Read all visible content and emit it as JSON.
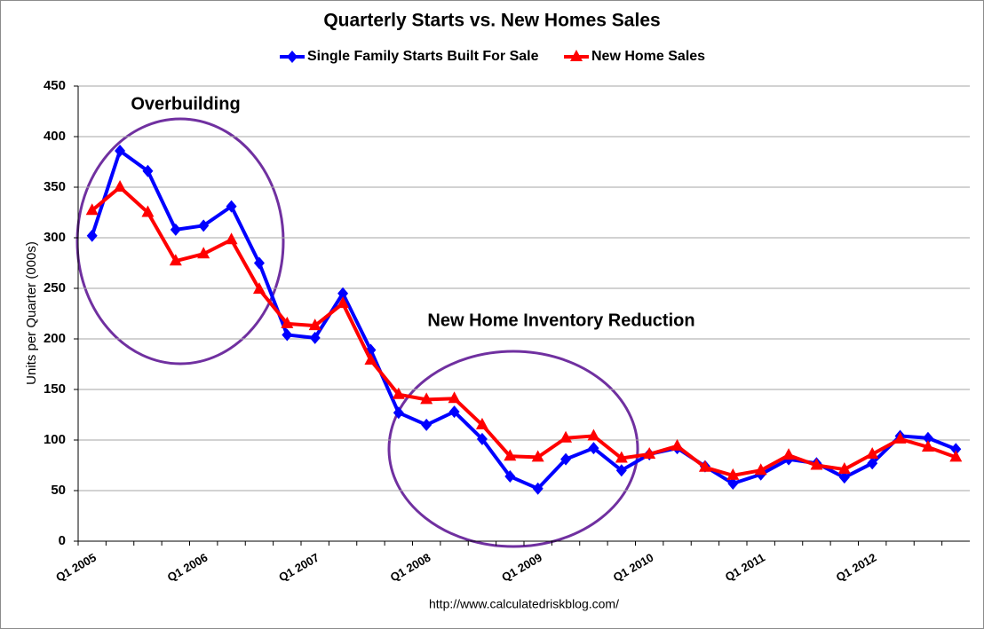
{
  "chart_data": {
    "type": "line",
    "title": "Quarterly Starts vs. New Homes Sales",
    "y_label": "Units per Quarter (000s)",
    "annotations": [
      "Overbuilding",
      "New Home Inventory Reduction"
    ],
    "source": "http://www.calculatedriskblog.com/",
    "categories": [
      "Q1 2005",
      null,
      null,
      null,
      "Q1 2006",
      null,
      null,
      null,
      "Q1 2007",
      null,
      null,
      null,
      "Q1 2008",
      null,
      null,
      null,
      "Q1 2009",
      null,
      null,
      null,
      "Q1 2010",
      null,
      null,
      null,
      "Q1 2011",
      null,
      null,
      null,
      "Q1 2012",
      null,
      null,
      null
    ],
    "series": [
      {
        "name": "Single Family Starts Built For Sale",
        "color": "#0000ff",
        "marker": "diamond",
        "values": [
          302,
          386,
          366,
          308,
          312,
          331,
          275,
          204,
          201,
          245,
          189,
          127,
          115,
          128,
          101,
          64,
          52,
          81,
          92,
          70,
          86,
          92,
          74,
          57,
          66,
          81,
          77,
          63,
          77,
          104,
          102,
          91
        ]
      },
      {
        "name": "New Home Sales",
        "color": "#ff0000",
        "marker": "triangle",
        "values": [
          327,
          350,
          325,
          277,
          284,
          298,
          249,
          215,
          213,
          235,
          179,
          145,
          140,
          141,
          115,
          84,
          83,
          102,
          104,
          82,
          86,
          94,
          73,
          65,
          70,
          85,
          75,
          71,
          86,
          101,
          93,
          83
        ]
      }
    ],
    "ylim": [
      0,
      450
    ],
    "yticks": [
      0,
      50,
      100,
      150,
      200,
      250,
      300,
      350,
      400,
      450
    ],
    "grid": true,
    "legend": "top"
  }
}
